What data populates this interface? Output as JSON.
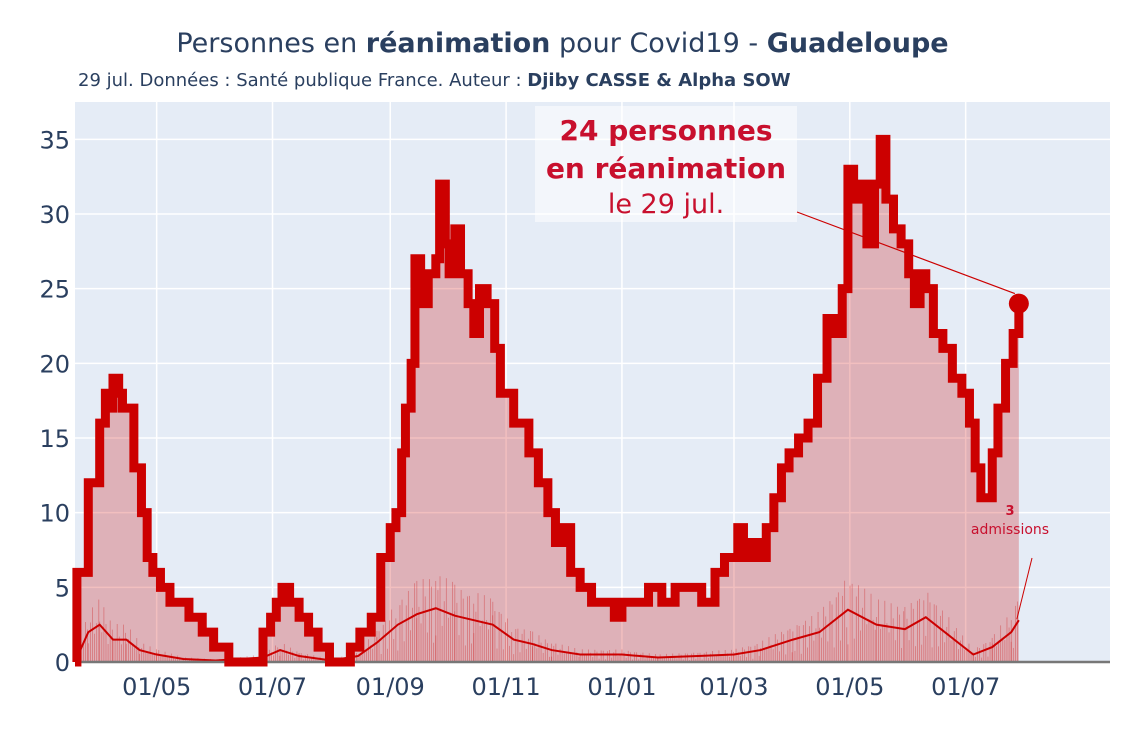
{
  "title": {
    "part1": "Personnes en ",
    "bold1": "réanimation",
    "part2": " pour Covid19 - ",
    "bold2": "Guadeloupe"
  },
  "subtitle": {
    "text": "29 jul. Données : Santé publique France. Auteur : ",
    "authors": "Djiby CASSE & Alpha SOW"
  },
  "annotation": {
    "line1": "24 personnes",
    "line2": "en réanimation",
    "line3": "le 29 jul."
  },
  "admissions_annotation": {
    "value": "3",
    "label": "admissions"
  },
  "colors": {
    "plot_bg": "#e5ecf6",
    "main_line": "#cc0000",
    "fill": "rgba(204,0,0,0.25)",
    "accent_text": "#c8102e",
    "axis_text": "#2a3f5f",
    "grid": "#ffffff"
  },
  "chart_data": {
    "type": "line",
    "ylim": [
      0,
      37.5
    ],
    "yticks": [
      0,
      5,
      10,
      15,
      20,
      25,
      30,
      35
    ],
    "xlim": [
      "2020-03-19",
      "2021-09-15"
    ],
    "xticks": [
      {
        "date": "2020-05-01",
        "label": "01/05"
      },
      {
        "date": "2020-07-01",
        "label": "01/07"
      },
      {
        "date": "2020-09-01",
        "label": "01/09"
      },
      {
        "date": "2020-11-01",
        "label": "01/11"
      },
      {
        "date": "2021-01-01",
        "label": "01/01"
      },
      {
        "date": "2021-03-01",
        "label": "01/03"
      },
      {
        "date": "2021-05-01",
        "label": "01/05"
      },
      {
        "date": "2021-07-01",
        "label": "01/07"
      }
    ],
    "grid": true,
    "series": [
      {
        "points": [
          [
            "2020-03-19",
            0
          ],
          [
            "2020-03-20",
            6
          ],
          [
            "2020-03-23",
            6
          ],
          [
            "2020-03-26",
            12
          ],
          [
            "2020-03-30",
            12
          ],
          [
            "2020-04-01",
            16
          ],
          [
            "2020-04-04",
            18
          ],
          [
            "2020-04-06",
            17
          ],
          [
            "2020-04-08",
            19
          ],
          [
            "2020-04-11",
            18
          ],
          [
            "2020-04-13",
            17
          ],
          [
            "2020-04-16",
            17
          ],
          [
            "2020-04-19",
            13
          ],
          [
            "2020-04-23",
            10
          ],
          [
            "2020-04-26",
            7
          ],
          [
            "2020-04-29",
            6
          ],
          [
            "2020-05-03",
            5
          ],
          [
            "2020-05-08",
            4
          ],
          [
            "2020-05-14",
            4
          ],
          [
            "2020-05-18",
            3
          ],
          [
            "2020-05-25",
            2
          ],
          [
            "2020-05-31",
            1
          ],
          [
            "2020-06-05",
            1
          ],
          [
            "2020-06-08",
            0
          ],
          [
            "2020-06-24",
            0
          ],
          [
            "2020-06-26",
            2
          ],
          [
            "2020-06-30",
            3
          ],
          [
            "2020-07-03",
            4
          ],
          [
            "2020-07-06",
            5
          ],
          [
            "2020-07-10",
            4
          ],
          [
            "2020-07-15",
            3
          ],
          [
            "2020-07-20",
            2
          ],
          [
            "2020-07-25",
            1
          ],
          [
            "2020-07-31",
            0
          ],
          [
            "2020-08-08",
            0
          ],
          [
            "2020-08-11",
            1
          ],
          [
            "2020-08-16",
            2
          ],
          [
            "2020-08-22",
            3
          ],
          [
            "2020-08-27",
            7
          ],
          [
            "2020-09-01",
            9
          ],
          [
            "2020-09-04",
            10
          ],
          [
            "2020-09-07",
            14
          ],
          [
            "2020-09-09",
            17
          ],
          [
            "2020-09-12",
            20
          ],
          [
            "2020-09-14",
            27
          ],
          [
            "2020-09-17",
            24
          ],
          [
            "2020-09-21",
            26
          ],
          [
            "2020-09-25",
            27
          ],
          [
            "2020-09-27",
            32
          ],
          [
            "2020-09-30",
            28
          ],
          [
            "2020-10-02",
            26
          ],
          [
            "2020-10-05",
            29
          ],
          [
            "2020-10-08",
            26
          ],
          [
            "2020-10-12",
            24
          ],
          [
            "2020-10-15",
            22
          ],
          [
            "2020-10-18",
            25
          ],
          [
            "2020-10-22",
            24
          ],
          [
            "2020-10-26",
            21
          ],
          [
            "2020-10-29",
            18
          ],
          [
            "2020-11-01",
            18
          ],
          [
            "2020-11-05",
            16
          ],
          [
            "2020-11-09",
            16
          ],
          [
            "2020-11-13",
            14
          ],
          [
            "2020-11-18",
            12
          ],
          [
            "2020-11-23",
            10
          ],
          [
            "2020-11-27",
            8
          ],
          [
            "2020-12-01",
            9
          ],
          [
            "2020-12-05",
            6
          ],
          [
            "2020-12-10",
            5
          ],
          [
            "2020-12-16",
            4
          ],
          [
            "2020-12-22",
            4
          ],
          [
            "2020-12-28",
            3
          ],
          [
            "2021-01-01",
            4
          ],
          [
            "2021-01-08",
            4
          ],
          [
            "2021-01-15",
            5
          ],
          [
            "2021-01-22",
            4
          ],
          [
            "2021-01-29",
            5
          ],
          [
            "2021-02-05",
            5
          ],
          [
            "2021-02-12",
            4
          ],
          [
            "2021-02-19",
            6
          ],
          [
            "2021-02-24",
            7
          ],
          [
            "2021-02-28",
            7
          ],
          [
            "2021-03-03",
            9
          ],
          [
            "2021-03-06",
            7
          ],
          [
            "2021-03-10",
            8
          ],
          [
            "2021-03-14",
            7
          ],
          [
            "2021-03-18",
            9
          ],
          [
            "2021-03-22",
            11
          ],
          [
            "2021-03-26",
            13
          ],
          [
            "2021-03-30",
            14
          ],
          [
            "2021-04-04",
            15
          ],
          [
            "2021-04-09",
            16
          ],
          [
            "2021-04-14",
            19
          ],
          [
            "2021-04-19",
            23
          ],
          [
            "2021-04-23",
            22
          ],
          [
            "2021-04-27",
            25
          ],
          [
            "2021-04-30",
            33
          ],
          [
            "2021-05-03",
            31
          ],
          [
            "2021-05-07",
            32
          ],
          [
            "2021-05-10",
            28
          ],
          [
            "2021-05-14",
            32
          ],
          [
            "2021-05-17",
            35
          ],
          [
            "2021-05-20",
            31
          ],
          [
            "2021-05-24",
            29
          ],
          [
            "2021-05-28",
            28
          ],
          [
            "2021-06-01",
            26
          ],
          [
            "2021-06-04",
            24
          ],
          [
            "2021-06-07",
            26
          ],
          [
            "2021-06-10",
            25
          ],
          [
            "2021-06-14",
            22
          ],
          [
            "2021-06-19",
            21
          ],
          [
            "2021-06-24",
            19
          ],
          [
            "2021-06-29",
            18
          ],
          [
            "2021-07-03",
            16
          ],
          [
            "2021-07-06",
            13
          ],
          [
            "2021-07-09",
            11
          ],
          [
            "2021-07-12",
            11
          ],
          [
            "2021-07-15",
            14
          ],
          [
            "2021-07-18",
            17
          ],
          [
            "2021-07-22",
            20
          ],
          [
            "2021-07-26",
            22
          ],
          [
            "2021-07-29",
            24
          ]
        ]
      },
      {
        "points": [
          [
            "2020-03-19",
            0
          ],
          [
            "2020-03-26",
            2
          ],
          [
            "2020-04-01",
            2.5
          ],
          [
            "2020-04-08",
            1.5
          ],
          [
            "2020-04-15",
            1.5
          ],
          [
            "2020-04-22",
            0.8
          ],
          [
            "2020-05-01",
            0.5
          ],
          [
            "2020-05-15",
            0.2
          ],
          [
            "2020-06-01",
            0.1
          ],
          [
            "2020-06-26",
            0.3
          ],
          [
            "2020-07-05",
            0.8
          ],
          [
            "2020-07-15",
            0.4
          ],
          [
            "2020-08-01",
            0.1
          ],
          [
            "2020-08-15",
            0.4
          ],
          [
            "2020-08-25",
            1.3
          ],
          [
            "2020-09-05",
            2.5
          ],
          [
            "2020-09-15",
            3.2
          ],
          [
            "2020-09-25",
            3.6
          ],
          [
            "2020-10-05",
            3.1
          ],
          [
            "2020-10-15",
            2.8
          ],
          [
            "2020-10-25",
            2.5
          ],
          [
            "2020-11-05",
            1.5
          ],
          [
            "2020-11-15",
            1.2
          ],
          [
            "2020-11-25",
            0.8
          ],
          [
            "2020-12-10",
            0.5
          ],
          [
            "2021-01-01",
            0.5
          ],
          [
            "2021-01-20",
            0.3
          ],
          [
            "2021-02-10",
            0.4
          ],
          [
            "2021-03-01",
            0.5
          ],
          [
            "2021-03-15",
            0.8
          ],
          [
            "2021-04-01",
            1.5
          ],
          [
            "2021-04-15",
            2.0
          ],
          [
            "2021-04-30",
            3.5
          ],
          [
            "2021-05-15",
            2.5
          ],
          [
            "2021-05-30",
            2.2
          ],
          [
            "2021-06-10",
            3.0
          ],
          [
            "2021-06-25",
            1.5
          ],
          [
            "2021-07-05",
            0.5
          ],
          [
            "2021-07-15",
            1.0
          ],
          [
            "2021-07-25",
            2.0
          ],
          [
            "2021-07-29",
            2.8
          ]
        ]
      }
    ],
    "last_value": 24,
    "last_admissions": 3
  }
}
